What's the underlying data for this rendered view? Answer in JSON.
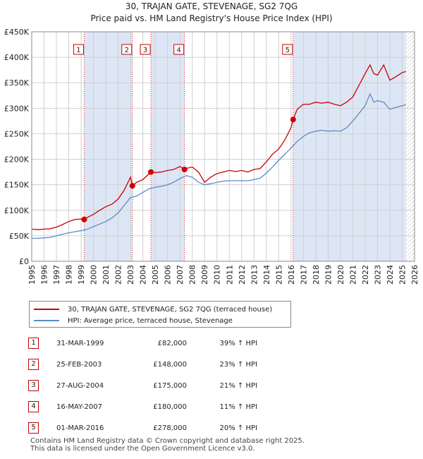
{
  "title_line1": "30, TRAJAN GATE, STEVENAGE, SG2 7QG",
  "title_line2": "Price paid vs. HM Land Registry's House Price Index (HPI)",
  "colors": {
    "price_paid": "#cc0000",
    "hpi": "#5b8cc4",
    "shade": "#dde6f5",
    "grid": "#d0d0d0"
  },
  "legend": {
    "price_paid_label": "30, TRAJAN GATE, STEVENAGE, SG2 7QG (terraced house)",
    "hpi_label": "HPI: Average price, terraced house, Stevenage"
  },
  "sales": [
    {
      "num": "1",
      "date": "31-MAR-1999",
      "price": "£82,000",
      "hpi": "39% ↑ HPI"
    },
    {
      "num": "2",
      "date": "25-FEB-2003",
      "price": "£148,000",
      "hpi": "23% ↑ HPI"
    },
    {
      "num": "3",
      "date": "27-AUG-2004",
      "price": "£175,000",
      "hpi": "21% ↑ HPI"
    },
    {
      "num": "4",
      "date": "16-MAY-2007",
      "price": "£180,000",
      "hpi": "11% ↑ HPI"
    },
    {
      "num": "5",
      "date": "01-MAR-2016",
      "price": "£278,000",
      "hpi": "20% ↑ HPI"
    }
  ],
  "footer": {
    "line1": "Contains HM Land Registry data © Crown copyright and database right 2025.",
    "line2": "This data is licensed under the Open Government Licence v3.0."
  },
  "chart_data": {
    "type": "line",
    "title": "30, TRAJAN GATE, STEVENAGE, SG2 7QG",
    "subtitle": "Price paid vs. HM Land Registry's House Price Index (HPI)",
    "xlabel": "",
    "ylabel": "",
    "xlim": [
      1995,
      2026
    ],
    "ylim": [
      0,
      450000
    ],
    "grid": true,
    "legend_position": "bottom",
    "y_ticks": [
      0,
      50000,
      100000,
      150000,
      200000,
      250000,
      300000,
      350000,
      400000,
      450000
    ],
    "y_tick_labels": [
      "£0",
      "£50K",
      "£100K",
      "£150K",
      "£200K",
      "£250K",
      "£300K",
      "£350K",
      "£400K",
      "£450K"
    ],
    "x_ticks": [
      1995,
      1996,
      1997,
      1998,
      1999,
      2000,
      2001,
      2002,
      2003,
      2004,
      2005,
      2006,
      2007,
      2008,
      2009,
      2010,
      2011,
      2012,
      2013,
      2014,
      2015,
      2016,
      2017,
      2018,
      2019,
      2020,
      2021,
      2022,
      2023,
      2024,
      2025,
      2026
    ],
    "x_tick_labels": [
      "1995",
      "1996",
      "1997",
      "1998",
      "1999",
      "2000",
      "2001",
      "2002",
      "2003",
      "2004",
      "2005",
      "2006",
      "2007",
      "2008",
      "2009",
      "2010",
      "2011",
      "2012",
      "2013",
      "2014",
      "2015",
      "2016",
      "2017",
      "2018",
      "2019",
      "2020",
      "2021",
      "2022",
      "2023",
      "2024",
      "2025",
      "2026"
    ],
    "shaded_ranges": [
      [
        1999.25,
        2003.15
      ],
      [
        2004.65,
        2007.37
      ],
      [
        2016.17,
        2025.3
      ]
    ],
    "hatched_after": 2025.3,
    "sale_markers": [
      {
        "label": "1",
        "x": 1999.25,
        "y": 82000
      },
      {
        "label": "2",
        "x": 2003.15,
        "y": 148000
      },
      {
        "label": "3",
        "x": 2004.65,
        "y": 175000
      },
      {
        "label": "4",
        "x": 2007.37,
        "y": 180000
      },
      {
        "label": "5",
        "x": 2016.17,
        "y": 278000
      }
    ],
    "series": [
      {
        "name": "30, TRAJAN GATE, STEVENAGE, SG2 7QG (terraced house)",
        "x": [
          1995.0,
          1995.5,
          1996.0,
          1996.5,
          1997.0,
          1997.5,
          1998.0,
          1998.5,
          1999.0,
          1999.25,
          1999.5,
          2000.0,
          2000.5,
          2001.0,
          2001.5,
          2002.0,
          2002.5,
          2003.0,
          2003.15,
          2003.5,
          2004.0,
          2004.65,
          2005.0,
          2005.5,
          2006.0,
          2006.5,
          2007.0,
          2007.37,
          2007.5,
          2008.0,
          2008.5,
          2009.0,
          2009.5,
          2010.0,
          2010.5,
          2011.0,
          2011.5,
          2012.0,
          2012.5,
          2013.0,
          2013.5,
          2014.0,
          2014.5,
          2015.0,
          2015.5,
          2016.0,
          2016.17,
          2016.5,
          2017.0,
          2017.5,
          2018.0,
          2018.5,
          2019.0,
          2019.5,
          2020.0,
          2020.5,
          2021.0,
          2021.5,
          2022.0,
          2022.4,
          2022.7,
          2023.0,
          2023.5,
          2024.0,
          2024.5,
          2025.0,
          2025.3
        ],
        "values": [
          63000,
          62000,
          63000,
          64000,
          67000,
          72000,
          78000,
          82000,
          83000,
          82000,
          86000,
          92000,
          100000,
          107000,
          112000,
          122000,
          140000,
          165000,
          148000,
          155000,
          160000,
          175000,
          174000,
          175000,
          178000,
          180000,
          186000,
          180000,
          182000,
          185000,
          175000,
          155000,
          165000,
          172000,
          175000,
          178000,
          176000,
          178000,
          175000,
          180000,
          182000,
          195000,
          210000,
          220000,
          238000,
          262000,
          278000,
          298000,
          308000,
          308000,
          312000,
          310000,
          312000,
          308000,
          305000,
          312000,
          322000,
          345000,
          368000,
          385000,
          368000,
          365000,
          385000,
          355000,
          362000,
          370000,
          372000
        ]
      },
      {
        "name": "HPI: Average price, terraced house, Stevenage",
        "x": [
          1995.0,
          1995.5,
          1996.0,
          1996.5,
          1997.0,
          1997.5,
          1998.0,
          1998.5,
          1999.0,
          1999.5,
          2000.0,
          2000.5,
          2001.0,
          2001.5,
          2002.0,
          2002.5,
          2003.0,
          2003.5,
          2004.0,
          2004.5,
          2005.0,
          2005.5,
          2006.0,
          2006.5,
          2007.0,
          2007.5,
          2008.0,
          2008.5,
          2009.0,
          2009.5,
          2010.0,
          2010.5,
          2011.0,
          2011.5,
          2012.0,
          2012.5,
          2013.0,
          2013.5,
          2014.0,
          2014.5,
          2015.0,
          2015.5,
          2016.0,
          2016.5,
          2017.0,
          2017.5,
          2018.0,
          2018.5,
          2019.0,
          2019.5,
          2020.0,
          2020.5,
          2021.0,
          2021.5,
          2022.0,
          2022.4,
          2022.7,
          2023.0,
          2023.5,
          2024.0,
          2024.5,
          2025.0,
          2025.3
        ],
        "values": [
          45000,
          45000,
          46000,
          47000,
          50000,
          53000,
          56000,
          58000,
          60000,
          63000,
          68000,
          73000,
          78000,
          85000,
          95000,
          110000,
          125000,
          128000,
          135000,
          142000,
          145000,
          147000,
          150000,
          155000,
          162000,
          168000,
          165000,
          155000,
          150000,
          152000,
          155000,
          157000,
          158000,
          158000,
          158000,
          158000,
          160000,
          163000,
          173000,
          185000,
          198000,
          210000,
          222000,
          235000,
          245000,
          252000,
          255000,
          257000,
          255000,
          256000,
          255000,
          262000,
          275000,
          290000,
          305000,
          328000,
          312000,
          315000,
          312000,
          298000,
          302000,
          305000,
          307000
        ]
      }
    ]
  }
}
